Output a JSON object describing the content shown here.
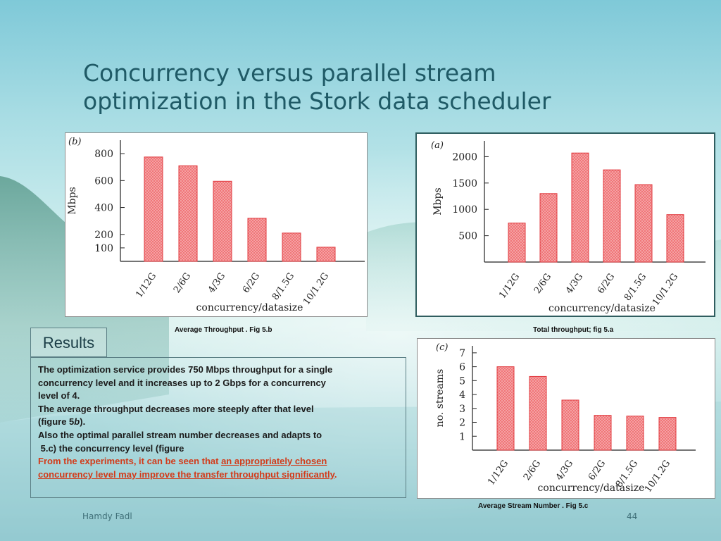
{
  "slide": {
    "title_line1": "Concurrency versus parallel stream",
    "title_line2": "optimization in the Stork data scheduler",
    "author": "Hamdy Fadl",
    "page_number": "44"
  },
  "captions": {
    "fig_b": "Average Throughput . Fig 5.b",
    "fig_a": "Total throughput; fig 5.a",
    "fig_c": "Average Stream Number . Fig 5.c"
  },
  "results": {
    "label": "Results",
    "line1": "The optimization service provides 750 Mbps throughput for a single",
    "line2": "concurrency level and it increases up to 2 Gbps for a concurrency",
    "line3": "level of 4.",
    "line4": "The average throughput decreases more steeply after that level",
    "line5_pre": "(figure 5",
    "line5_italic": "b",
    "line5_post": ").",
    "line6": "Also the optimal parallel stream number decreases and adapts to",
    "line7": " 5.c) the concurrency level (figure",
    "line8_plain": "From the experiments, it can be seen that ",
    "line8_underlined": "an appropriately chosen ",
    "line9_underlined": "concurrency level may improve the transfer throughput significantly",
    "line9_end": "."
  },
  "colors": {
    "bar_fill": "#ef6f72",
    "bar_stroke": "#e0383d",
    "title": "#1f5a66",
    "highlight": "#d23b1a"
  },
  "chart_data": [
    {
      "id": "b",
      "type": "bar",
      "panel_label": "(b)",
      "categories": [
        "1/12G",
        "2/6G",
        "4/3G",
        "6/2G",
        "8/1.5G",
        "10/1.2G"
      ],
      "values": [
        775,
        710,
        595,
        320,
        210,
        105
      ],
      "ylabel": "Mbps",
      "xlabel": "concurrency/datasize",
      "yticks": [
        100,
        200,
        400,
        600,
        800
      ],
      "ylim": [
        0,
        900
      ]
    },
    {
      "id": "a",
      "type": "bar",
      "panel_label": "(a)",
      "categories": [
        "1/12G",
        "2/6G",
        "4/3G",
        "6/2G",
        "8/1.5G",
        "10/1.2G"
      ],
      "values": [
        740,
        1300,
        2070,
        1750,
        1470,
        900
      ],
      "ylabel": "Mbps",
      "xlabel": "concurrency/datasize",
      "yticks": [
        500,
        1000,
        1500,
        2000
      ],
      "ylim": [
        0,
        2300
      ]
    },
    {
      "id": "c",
      "type": "bar",
      "panel_label": "(c)",
      "categories": [
        "1/12G",
        "2/6G",
        "4/3G",
        "6/2G",
        "8/1.5G",
        "10/1.2G"
      ],
      "values": [
        6.0,
        5.3,
        3.6,
        2.5,
        2.45,
        2.35
      ],
      "ylabel": "no. streams",
      "xlabel": "concurrency/datasize",
      "yticks": [
        1,
        2,
        3,
        4,
        5,
        6,
        7
      ],
      "ylim": [
        0,
        7.5
      ]
    }
  ]
}
